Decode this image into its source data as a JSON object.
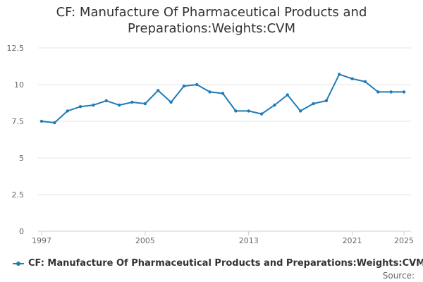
{
  "chart_data": {
    "type": "line",
    "title_lines": [
      "CF: Manufacture Of Pharmaceutical Products and",
      "Preparations:Weights:CVM"
    ],
    "xlabel": "",
    "ylabel": "",
    "x_ticks": [
      1997,
      2005,
      2013,
      2021,
      2025
    ],
    "y_ticks": [
      0,
      2.5,
      5,
      7.5,
      10,
      12.5
    ],
    "y_tick_labels": [
      "0",
      "2.5",
      "5",
      "7.5",
      "10",
      "12.5"
    ],
    "xlim": [
      1997,
      2025
    ],
    "ylim": [
      0,
      12.5
    ],
    "grid": "horizontal",
    "series": [
      {
        "name": "CF: Manufacture Of Pharmaceutical Products and Preparations:Weights:CVM",
        "color": "#1f7cb6",
        "x": [
          1997,
          1998,
          1999,
          2000,
          2001,
          2002,
          2003,
          2004,
          2005,
          2006,
          2007,
          2008,
          2009,
          2010,
          2011,
          2012,
          2013,
          2014,
          2015,
          2016,
          2017,
          2018,
          2019,
          2020,
          2021,
          2022,
          2023,
          2024,
          2025
        ],
        "values": [
          7.5,
          7.4,
          8.2,
          8.5,
          8.6,
          8.9,
          8.6,
          8.8,
          8.7,
          9.6,
          8.8,
          9.9,
          10.0,
          9.5,
          9.4,
          8.2,
          8.2,
          8.0,
          8.6,
          9.3,
          8.2,
          8.7,
          8.9,
          10.7,
          10.4,
          10.2,
          9.5,
          9.5,
          9.5
        ]
      }
    ],
    "legend_position": "bottom-left",
    "source_label": "Source:"
  }
}
